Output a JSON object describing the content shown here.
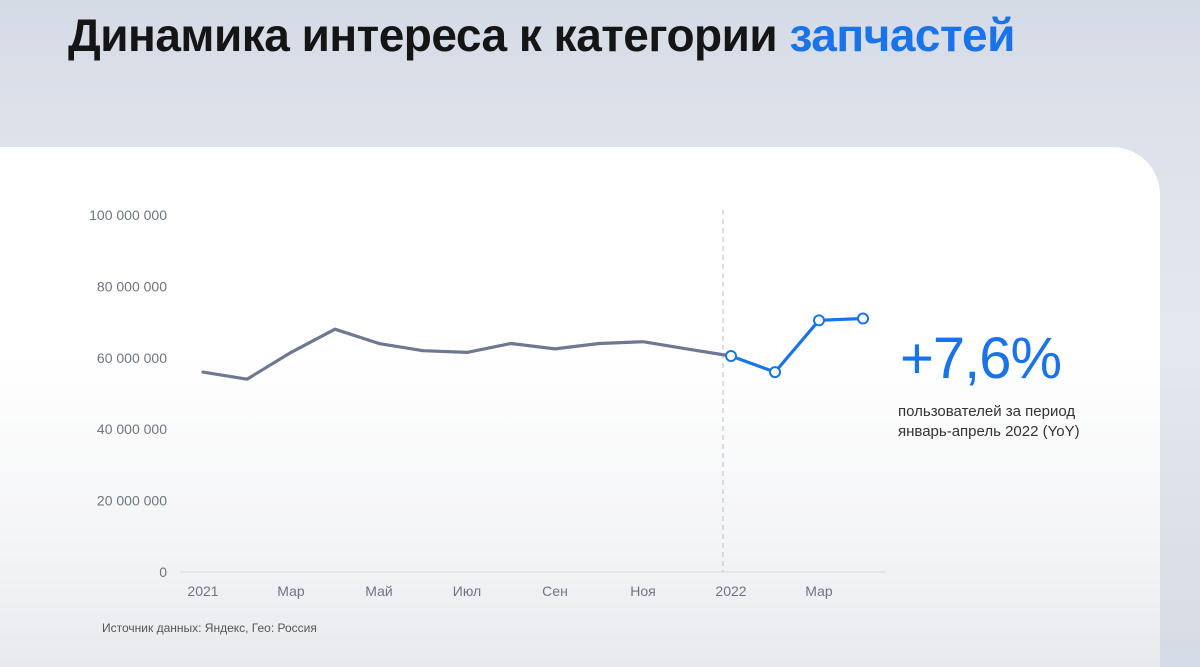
{
  "title": {
    "main": "Динамика интереса к категории",
    "accent": "запчастей"
  },
  "stat": {
    "value": "+7,6%",
    "line1": "пользователей за период",
    "line2": "январь-апрель 2022 (YoY)"
  },
  "source": "Источник данных: Яндекс, Гео: Россия",
  "colors": {
    "accent": "#1a73e8",
    "series_2021": "#6f7891",
    "series_2022": "#1a73e8"
  },
  "chart_data": {
    "type": "line",
    "ylim": [
      0,
      100000000
    ],
    "y_ticks": [
      {
        "value": 0,
        "label": "0"
      },
      {
        "value": 20000000,
        "label": "20 000 000"
      },
      {
        "value": 40000000,
        "label": "40 000 000"
      },
      {
        "value": 60000000,
        "label": "60 000 000"
      },
      {
        "value": 80000000,
        "label": "80 000 000"
      },
      {
        "value": 100000000,
        "label": "100 000 000"
      }
    ],
    "x_tick_labels": [
      {
        "index": 0,
        "label": "2021"
      },
      {
        "index": 2,
        "label": "Мар"
      },
      {
        "index": 4,
        "label": "Май"
      },
      {
        "index": 6,
        "label": "Июл"
      },
      {
        "index": 8,
        "label": "Сен"
      },
      {
        "index": 10,
        "label": "Ноя"
      },
      {
        "index": 12,
        "label": "2022"
      },
      {
        "index": 14,
        "label": "Мар"
      }
    ],
    "year_divider_index": 12,
    "series": [
      {
        "values": [
          56000000,
          54000000,
          61500000,
          68000000,
          64000000,
          62000000,
          61500000,
          64000000,
          62500000,
          64000000,
          64500000,
          62500000,
          60500000
        ],
        "start_index": 0
      },
      {
        "values": [
          60500000,
          56000000,
          70500000,
          71000000
        ],
        "start_index": 12,
        "markers": true
      }
    ],
    "grid": false,
    "legend": "none"
  }
}
